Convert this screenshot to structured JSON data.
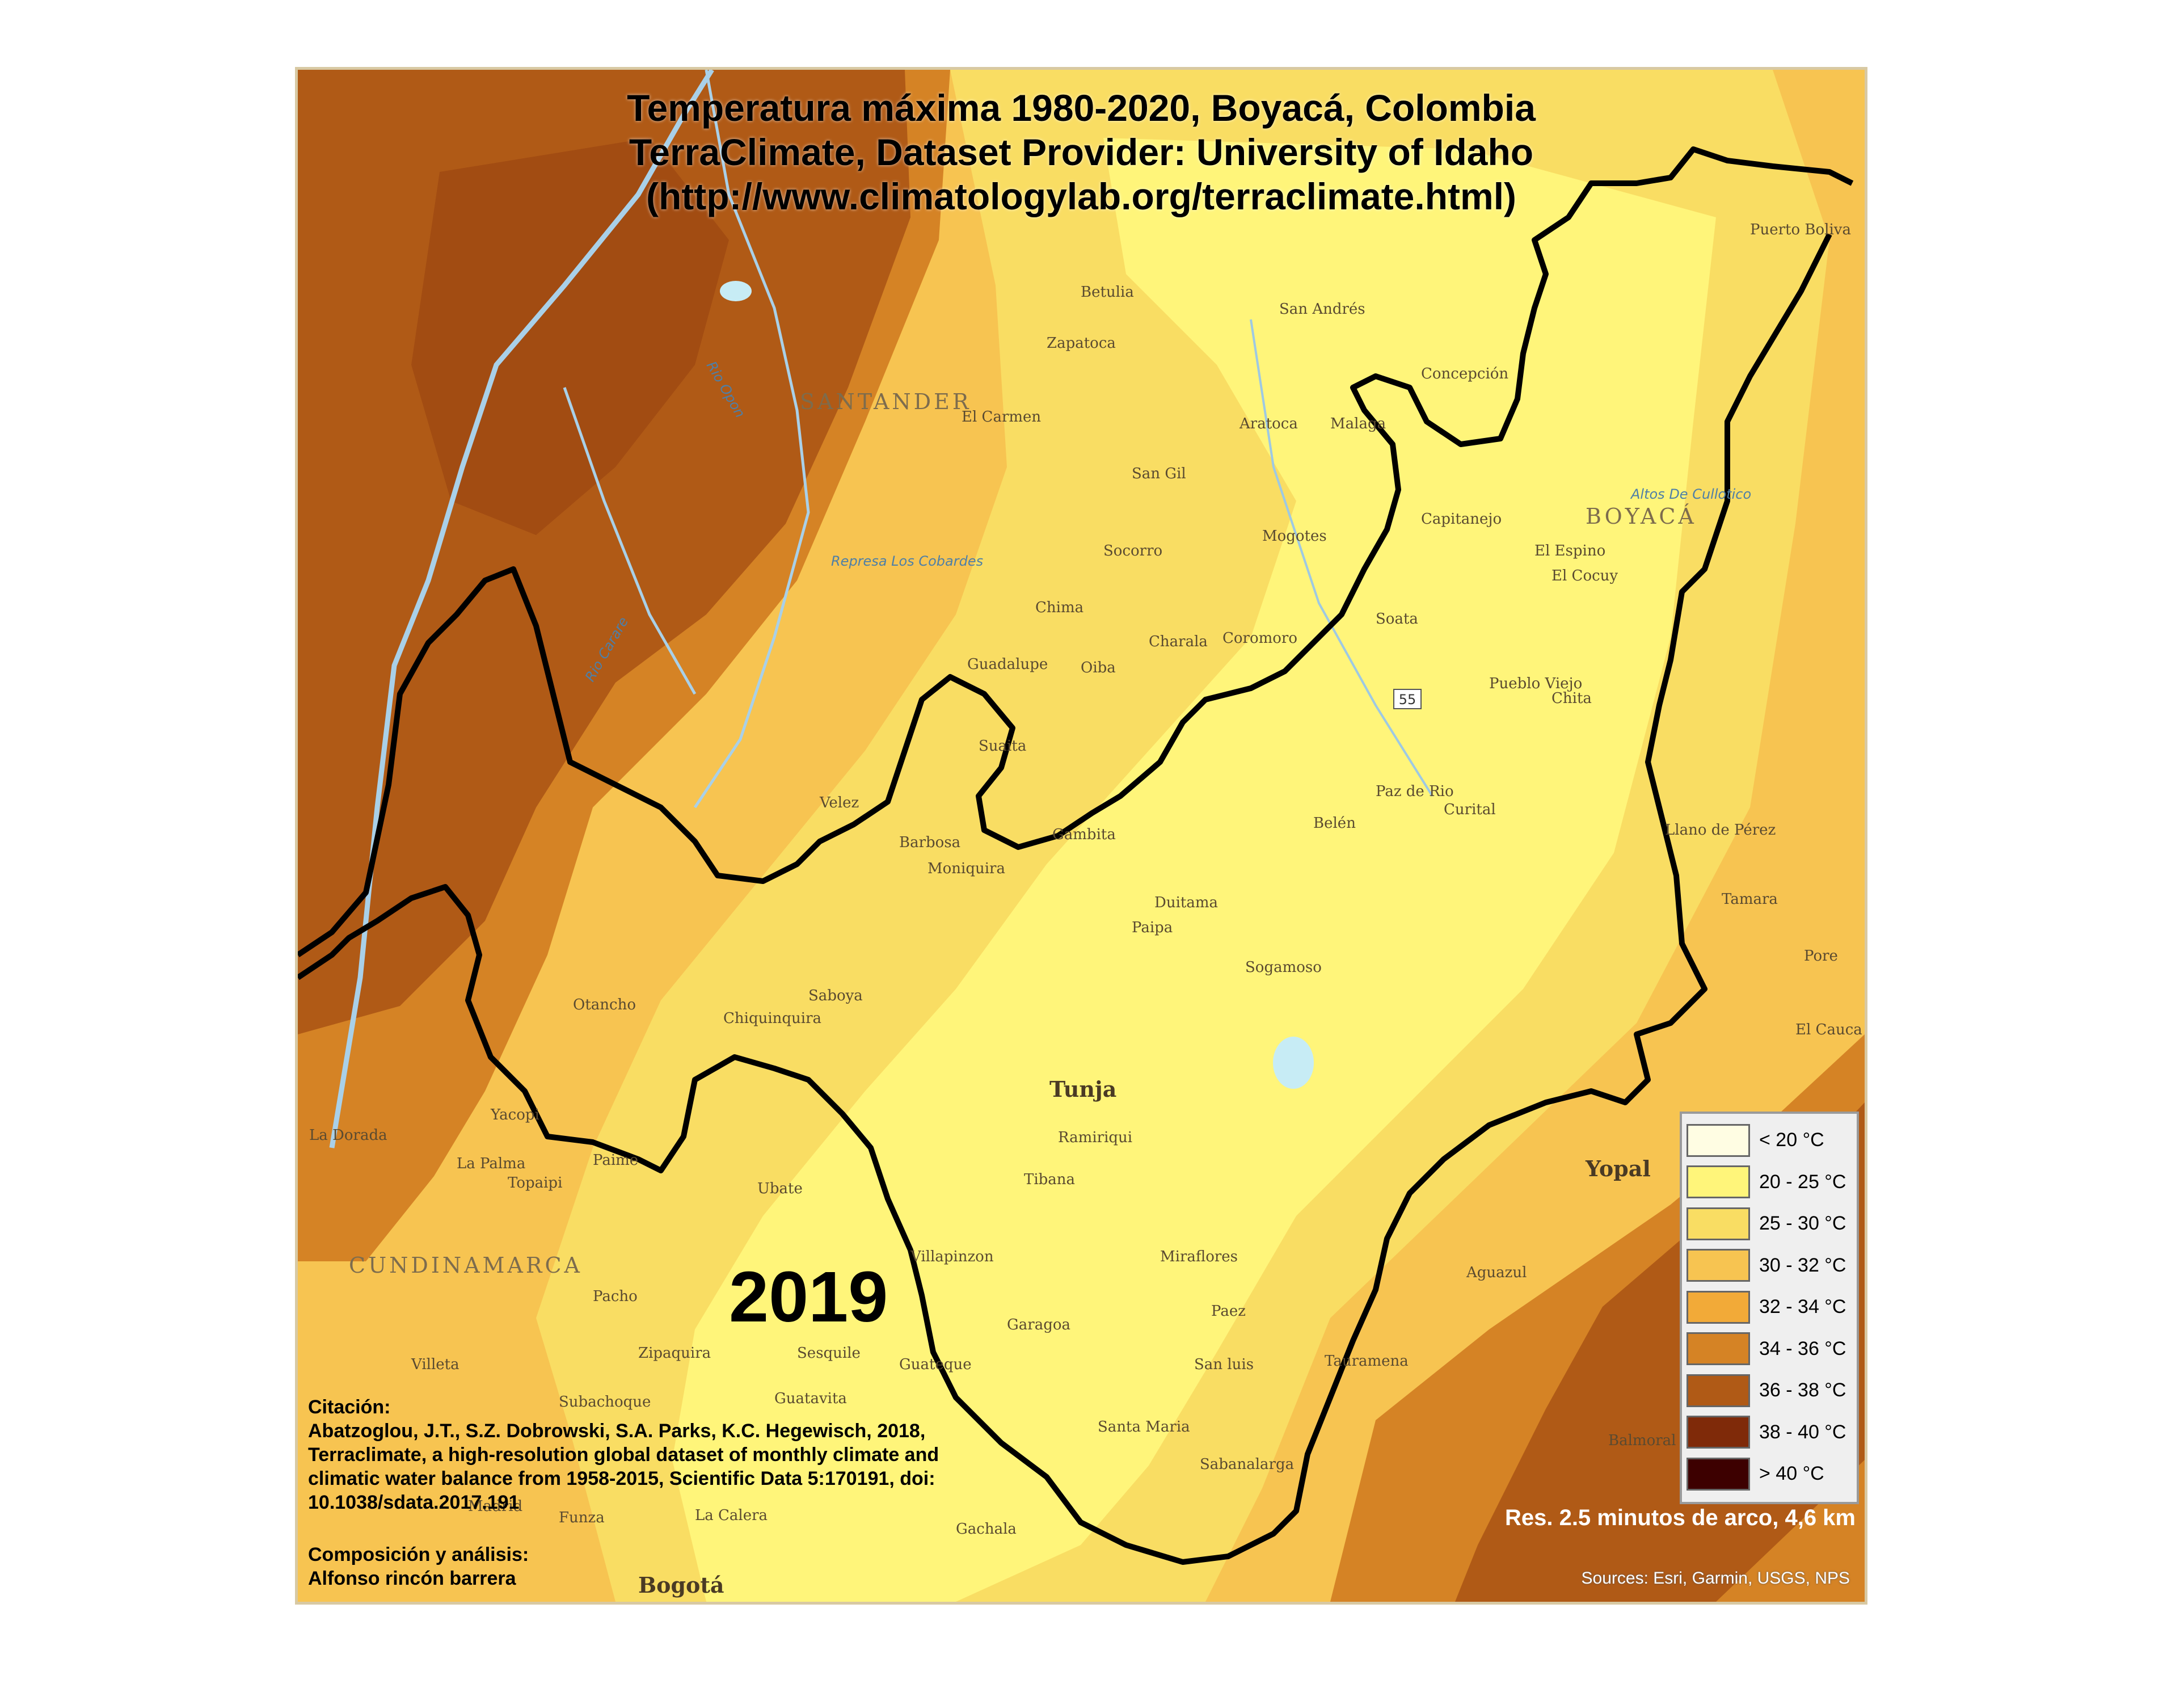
{
  "title": {
    "line1": "Temperatura máxima 1980-2020, Boyacá, Colombia",
    "line2": "TerraClimate, Dataset Provider: University of Idaho",
    "line3": "(http://www.climatologylab.org/terraclimate.html)"
  },
  "year": "2019",
  "legend": {
    "items": [
      {
        "label": "< 20 °C",
        "color": "#fffde3"
      },
      {
        "label": "20 - 25 °C",
        "color": "#fff57a"
      },
      {
        "label": "25 - 30 °C",
        "color": "#f9dd63"
      },
      {
        "label": "30 - 32 °C",
        "color": "#f7c451"
      },
      {
        "label": "32 - 34 °C",
        "color": "#f2aa38"
      },
      {
        "label": "34 - 36 °C",
        "color": "#d58325"
      },
      {
        "label": "36 - 38 °C",
        "color": "#b05a16"
      },
      {
        "label": "38 - 40 °C",
        "color": "#7f2a09"
      },
      {
        "label": "> 40 °C",
        "color": "#3d0000"
      }
    ]
  },
  "citation": {
    "heading": "Citación:",
    "text": "Abatzoglou, J.T., S.Z. Dobrowski, S.A. Parks, K.C. Hegewisch, 2018, Terraclimate, a high-resolution global dataset of monthly climate and climatic water balance from 1958-2015, Scientific Data 5:170191, doi: 10.1038/sdata.2017.191"
  },
  "composition": {
    "heading": "Composición y análisis:",
    "author": "Alfonso rincón barrera"
  },
  "resolution": "Res. 2.5 minutos de arco, 4,6 km",
  "sources": "Sources: Esri, Garmin, USGS, NPS",
  "regions": {
    "santander": "SANTANDER",
    "boyaca": "BOYACÁ",
    "cundinamarca": "CUNDINAMARCA"
  },
  "places": {
    "tunja": "Tunja",
    "yopal": "Yopal",
    "bogota": "Bogotá",
    "san_andres": "San Andrés",
    "sogamoso": "Sogamoso",
    "duitama": "Duitama",
    "paipa": "Paipa",
    "chiquinquira": "Chiquinquira",
    "ubate": "Ubate",
    "zipaquira": "Zipaquira",
    "villeta": "Villeta",
    "pacho": "Pacho",
    "otanche": "Otancho",
    "saboya": "Saboya",
    "el_cocuy": "El Cocuy",
    "el_espino": "El Espino",
    "malaga": "Malaga",
    "socorro": "Socorro",
    "san_gil": "San Gil",
    "barbosa": "Barbosa",
    "moniquira": "Moniquira",
    "velez": "Velez",
    "belen": "Belén",
    "paz_de_rio": "Paz de Rio",
    "pueblo_viejo": "Pueblo Viejo",
    "chita": "Chita",
    "miraflores": "Miraflores",
    "garagoa": "Garagoa",
    "guateque": "Guateque",
    "tauramena": "Tauramena",
    "aguazul": "Aguazul",
    "tamara": "Tamara",
    "pore": "Pore",
    "santa_maria": "Santa Maria",
    "ramiriqui": "Ramiriqui",
    "tibana": "Tibana",
    "villapinzon": "Villapinzon",
    "la_palma": "La Palma",
    "sasaima": "Subachoque",
    "fusagasuga": "Funza",
    "la_calera": "La Calera",
    "madrid": "Madrid",
    "gachala": "Gachala",
    "guavita": "Guatavita",
    "sesquile": "Sesquile",
    "zapatoca": "Zapatoca",
    "betulia": "Betulia",
    "charala": "Charala",
    "coromoro": "Coromoro",
    "mogotes": "Mogotes",
    "guadalupe": "Guadalupe",
    "oiba": "Oiba",
    "suaita": "Suaita",
    "chima": "Chima",
    "gambita": "Gambita",
    "concepcion": "Concepción",
    "capitanejo": "Capitanejo",
    "soata": "Soata",
    "curital": "Curital",
    "san_luis": "San luis",
    "paez": "Paez",
    "sabanalarga": "Sabanalarga",
    "el_carmen": "El Carmen",
    "aratoca": "Aratoca",
    "puebla": "Puerto Boliva",
    "llano": "Llano de Pérez",
    "altos": "Altos De Cullotico",
    "represa": "Represa Los Cobardes",
    "balmoral": "Balmoral",
    "el_cauca": "El Cauca",
    "yacopi": "Yacopi",
    "la_dorada": "La Dorada",
    "paime": "Paime",
    "topaipi": "Topaipi"
  },
  "rivers": {
    "opon": "Rio Opon",
    "carare": "Rio Carare"
  },
  "road_shield": "55"
}
